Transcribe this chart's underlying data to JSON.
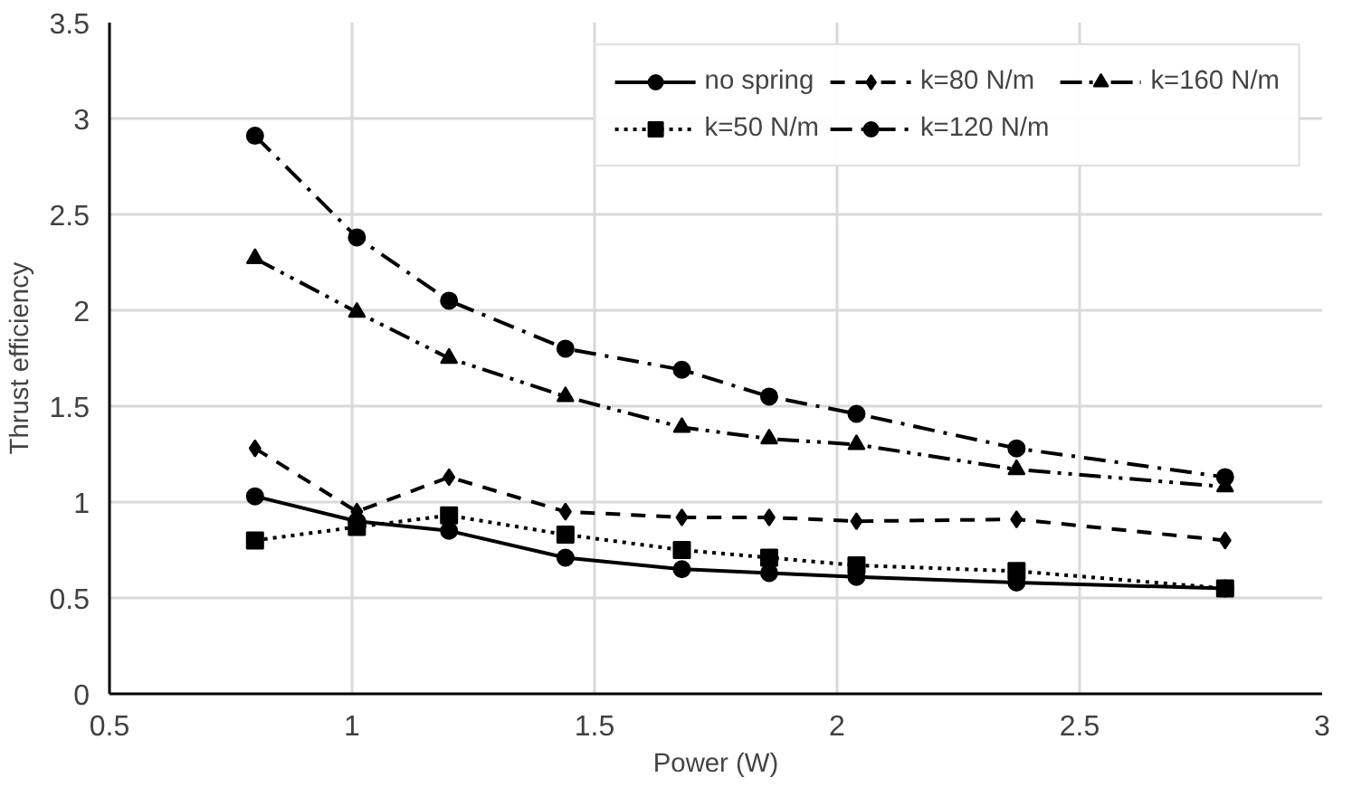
{
  "chart_data": {
    "type": "line",
    "xlabel": "Power (W)",
    "ylabel": "Thrust efficiency",
    "x": [
      0.8,
      1.01,
      1.2,
      1.44,
      1.68,
      1.86,
      2.04,
      2.37,
      2.8
    ],
    "xlim": [
      0.5,
      3
    ],
    "xticks": [
      0.5,
      1,
      1.5,
      2,
      2.5,
      3
    ],
    "ylim": [
      0,
      3.5
    ],
    "yticks": [
      0,
      0.5,
      1,
      1.5,
      2,
      2.5,
      3,
      3.5
    ],
    "grid": true,
    "legend": "top right",
    "series": [
      {
        "name": "no spring",
        "color": "#000000",
        "marker": "circle",
        "line_style": "solid",
        "values": [
          1.03,
          0.9,
          0.85,
          0.71,
          0.65,
          0.63,
          0.61,
          0.58,
          0.55
        ]
      },
      {
        "name": "k=50 N/m",
        "color": "#000000",
        "marker": "square",
        "line_style": "dotted",
        "values": [
          0.8,
          0.87,
          0.93,
          0.83,
          0.75,
          0.71,
          0.67,
          0.64,
          0.55
        ]
      },
      {
        "name": "k=80 N/m",
        "color": "#000000",
        "marker": "diamond",
        "line_style": "dashed",
        "values": [
          1.28,
          0.95,
          1.13,
          0.95,
          0.92,
          0.92,
          0.9,
          0.91,
          0.8
        ]
      },
      {
        "name": "k=120 N/m",
        "color": "#000000",
        "marker": "circle",
        "line_style": "dashdot",
        "values": [
          2.91,
          2.38,
          2.05,
          1.8,
          1.69,
          1.55,
          1.46,
          1.28,
          1.13
        ]
      },
      {
        "name": "k=160 N/m",
        "color": "#000000",
        "marker": "triangle",
        "line_style": "dashdotdot",
        "values": [
          2.27,
          1.99,
          1.75,
          1.55,
          1.39,
          1.33,
          1.3,
          1.17,
          1.08
        ]
      }
    ]
  }
}
